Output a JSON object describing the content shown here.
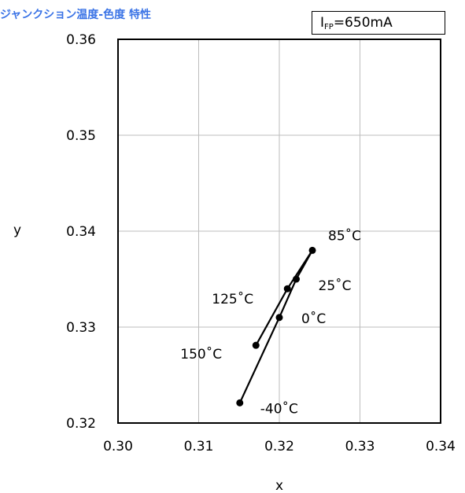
{
  "title": "ジャンクション温度-色度 特性",
  "condition": {
    "symbol": "I",
    "subscript": "FP",
    "value": "=650mA"
  },
  "chart_data": {
    "type": "line",
    "title": "ジャンクション温度-色度 特性",
    "xlabel": "x",
    "ylabel": "y",
    "xlim": [
      0.3,
      0.34
    ],
    "ylim": [
      0.32,
      0.36
    ],
    "xticks": [
      "0.30",
      "0.31",
      "0.32",
      "0.33",
      "0.34"
    ],
    "yticks": [
      "0.32",
      "0.33",
      "0.34",
      "0.35",
      "0.36"
    ],
    "grid": true,
    "series": [
      {
        "points": [
          {
            "label": "-40˚C",
            "x": 0.3151,
            "y": 0.3221
          },
          {
            "label": "0˚C",
            "x": 0.32,
            "y": 0.331
          },
          {
            "label": "25˚C",
            "x": 0.3221,
            "y": 0.335
          },
          {
            "label": "85˚C",
            "x": 0.3241,
            "y": 0.338
          },
          {
            "label": "125˚C",
            "x": 0.321,
            "y": 0.334
          },
          {
            "label": "150˚C",
            "x": 0.3171,
            "y": 0.3281
          }
        ]
      }
    ]
  }
}
